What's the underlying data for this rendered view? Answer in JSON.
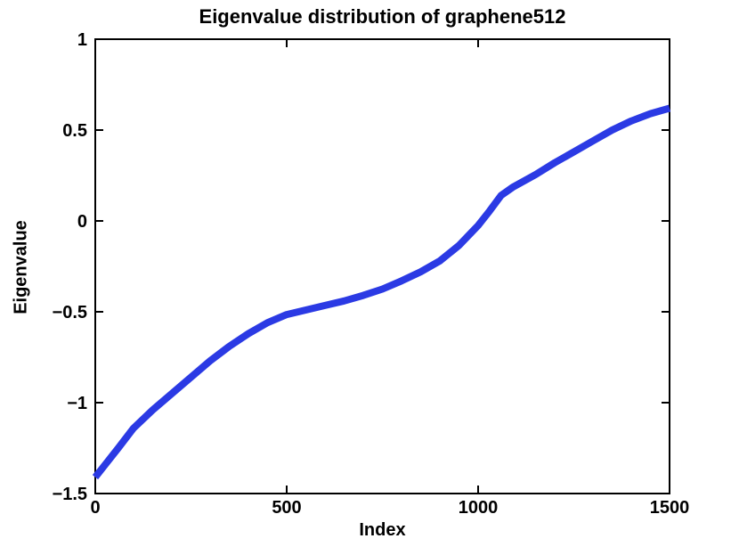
{
  "figure": {
    "title": "Eigenvalue distribution of graphene512",
    "xlabel": "Index",
    "ylabel": "Eigenvalue"
  },
  "chart_data": {
    "type": "line",
    "title": "Eigenvalue distribution of graphene512",
    "xlabel": "Index",
    "ylabel": "Eigenvalue",
    "xlim": [
      0,
      1500
    ],
    "ylim": [
      -1.5,
      1
    ],
    "x_ticks": [
      0,
      500,
      1000,
      1500
    ],
    "x_tick_labels": [
      "0",
      "500",
      "1000",
      "1500"
    ],
    "y_ticks": [
      1,
      0.5,
      0,
      -0.5,
      -1,
      -1.5
    ],
    "y_tick_labels": [
      "1",
      "0.5",
      "0",
      "−0.5",
      "−1",
      "−1.5"
    ],
    "grid": false,
    "legend_position": "none",
    "box": true,
    "axis_color": "#000000",
    "line_color": "#2b3ae4",
    "line_width": 8,
    "series": [
      {
        "name": "eigenvalues",
        "points": [
          [
            0,
            -1.41
          ],
          [
            30,
            -1.33
          ],
          [
            60,
            -1.25
          ],
          [
            100,
            -1.14
          ],
          [
            150,
            -1.04
          ],
          [
            200,
            -0.95
          ],
          [
            250,
            -0.86
          ],
          [
            300,
            -0.77
          ],
          [
            350,
            -0.69
          ],
          [
            400,
            -0.62
          ],
          [
            450,
            -0.56
          ],
          [
            500,
            -0.515
          ],
          [
            550,
            -0.49
          ],
          [
            600,
            -0.465
          ],
          [
            650,
            -0.44
          ],
          [
            700,
            -0.41
          ],
          [
            750,
            -0.375
          ],
          [
            800,
            -0.33
          ],
          [
            850,
            -0.28
          ],
          [
            900,
            -0.22
          ],
          [
            950,
            -0.135
          ],
          [
            1000,
            -0.025
          ],
          [
            1030,
            0.055
          ],
          [
            1060,
            0.14
          ],
          [
            1090,
            0.185
          ],
          [
            1150,
            0.255
          ],
          [
            1200,
            0.32
          ],
          [
            1250,
            0.38
          ],
          [
            1300,
            0.44
          ],
          [
            1350,
            0.5
          ],
          [
            1400,
            0.55
          ],
          [
            1450,
            0.59
          ],
          [
            1500,
            0.62
          ]
        ]
      }
    ]
  }
}
